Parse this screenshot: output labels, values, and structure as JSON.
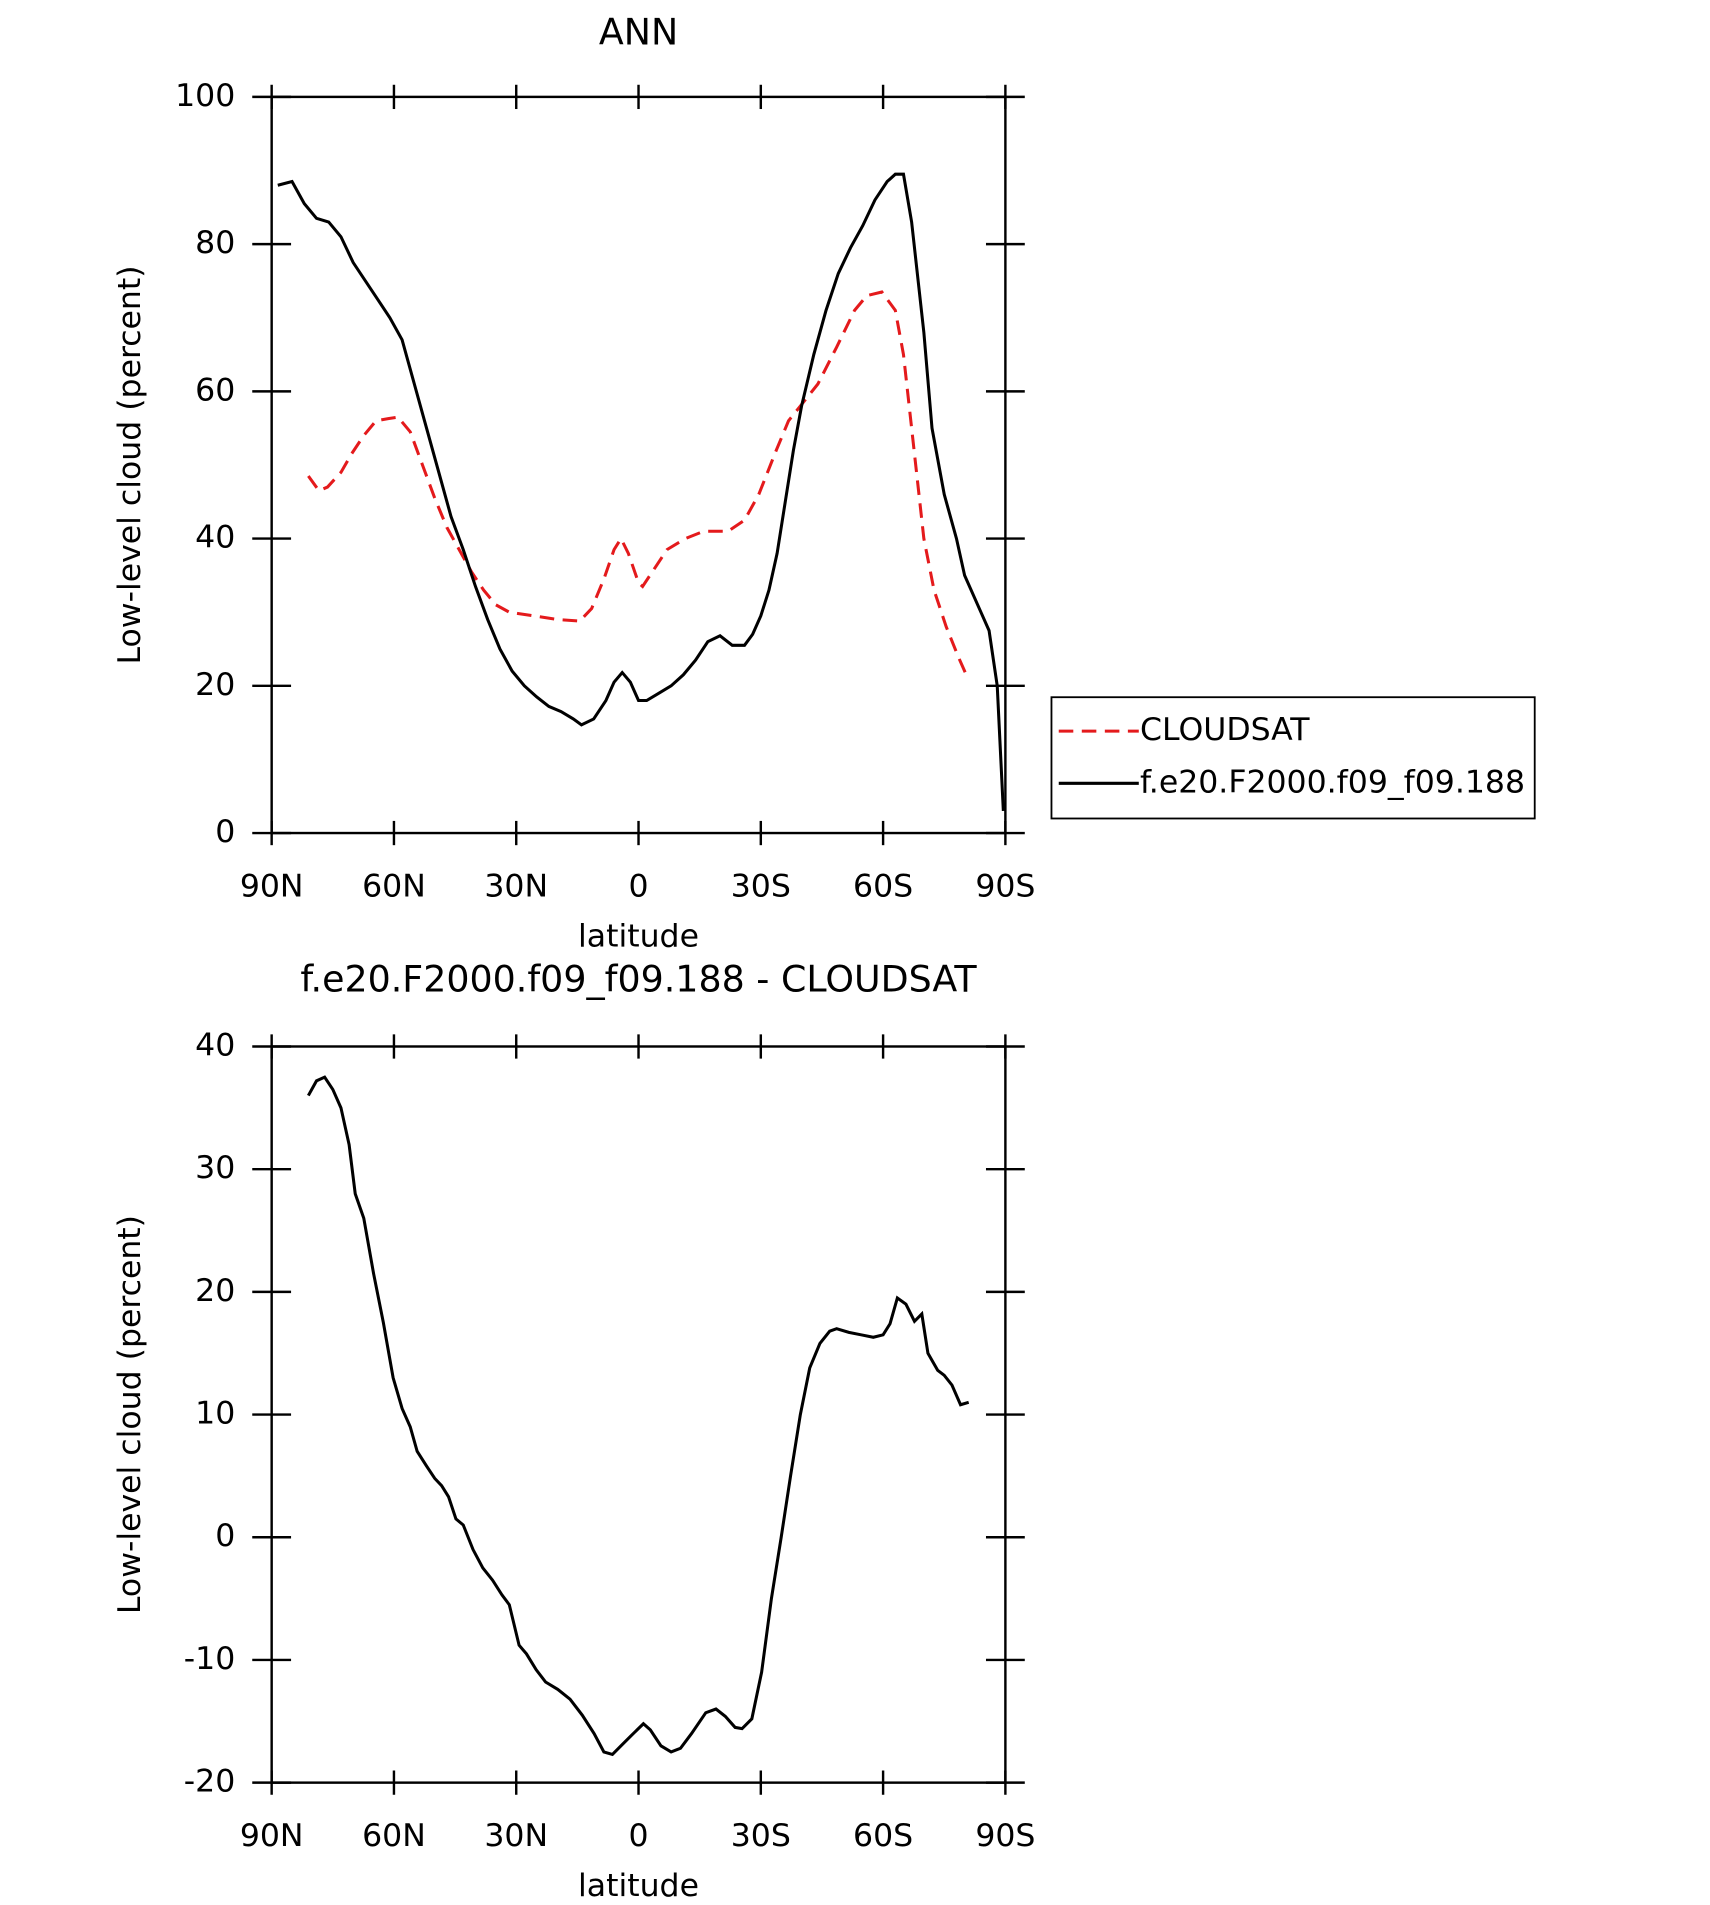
{
  "chart_data": [
    {
      "type": "line",
      "title": "ANN",
      "xlabel": "latitude",
      "ylabel": "Low-level cloud (percent)",
      "xlim": [
        90,
        -90
      ],
      "ylim": [
        0,
        100
      ],
      "xticks": [
        {
          "value": 90,
          "label": "90N"
        },
        {
          "value": 60,
          "label": "60N"
        },
        {
          "value": 30,
          "label": "30N"
        },
        0,
        {
          "value": -30,
          "label": "30S"
        },
        {
          "value": -60,
          "label": "60S"
        },
        {
          "value": -90,
          "label": "90S"
        }
      ],
      "yticks": [
        0,
        20,
        40,
        60,
        80,
        100
      ],
      "legend": "right",
      "series": [
        {
          "name": "CLOUDSAT",
          "color": "#e41a1c",
          "dashed": true,
          "x": [
            81,
            78.4,
            76.3,
            73,
            70.4,
            67.4,
            64.4,
            61.4,
            59,
            56,
            53,
            50,
            47,
            44,
            41,
            38,
            35,
            31.7,
            25.7,
            19.8,
            14.4,
            11.5,
            8.5,
            6,
            4.3,
            2.5,
            0,
            -1,
            -4,
            -7,
            -11.5,
            -16,
            -22,
            -26,
            -29.5,
            -33.8,
            -36.8,
            -39.7,
            -44,
            -48.6,
            -53,
            -56,
            -59.7,
            -63,
            -65,
            -67,
            -70,
            -72.5,
            -75.5,
            -78.4,
            -80.8
          ],
          "values": [
            48.5,
            46.5,
            47,
            49,
            51.5,
            54,
            56,
            56.3,
            56.5,
            54.5,
            50,
            45.5,
            41.5,
            38.5,
            35.5,
            33,
            31,
            30,
            29.5,
            29,
            28.8,
            30.5,
            34.5,
            38.5,
            40,
            38,
            34,
            33.5,
            36,
            38.5,
            40,
            41,
            41,
            42.5,
            46,
            52,
            56,
            58,
            61,
            66,
            71,
            73,
            73.5,
            71,
            65,
            55,
            40,
            33,
            28,
            24,
            21
          ]
        },
        {
          "name": "f.e20.F2000.f09_f09.188",
          "color": "#000000",
          "dashed": false,
          "x": [
            88.5,
            85,
            82,
            79,
            76,
            73,
            70,
            67,
            64,
            61,
            58,
            55,
            52,
            49,
            46,
            43,
            40,
            37,
            34,
            31,
            28,
            25,
            22,
            19,
            16,
            14,
            11,
            8,
            6,
            4,
            2,
            0,
            -2,
            -5,
            -8,
            -11,
            -14,
            -17,
            -20,
            -23,
            -26,
            -28,
            -30,
            -32,
            -34,
            -36,
            -38,
            -40,
            -43,
            -46,
            -49,
            -52,
            -55,
            -58,
            -61,
            -63,
            -65,
            -67,
            -70,
            -72,
            -75,
            -78,
            -80,
            -84,
            -86,
            -88,
            -89.5
          ],
          "values": [
            88,
            88.5,
            85.5,
            83.5,
            83,
            81,
            77.5,
            75,
            72.5,
            70,
            67,
            61,
            55,
            49,
            43,
            38.5,
            33.5,
            29,
            25,
            22,
            20,
            18.5,
            17.2,
            16.5,
            15.5,
            14.7,
            15.5,
            18,
            20.5,
            21.8,
            20.5,
            18,
            18,
            19,
            20,
            21.5,
            23.5,
            26,
            26.8,
            25.5,
            25.5,
            27,
            29.5,
            33,
            38,
            45,
            52,
            58,
            65,
            71,
            76,
            79.5,
            82.5,
            86,
            88.5,
            89.5,
            89.5,
            83,
            68,
            55,
            46,
            40,
            35,
            30,
            27.5,
            20,
            3
          ]
        }
      ]
    },
    {
      "type": "line",
      "title": "f.e20.F2000.f09_f09.188 - CLOUDSAT",
      "xlabel": "latitude",
      "ylabel": "Low-level cloud (percent)",
      "xlim": [
        90,
        -90
      ],
      "ylim": [
        -20,
        40
      ],
      "xticks": [
        {
          "value": 90,
          "label": "90N"
        },
        {
          "value": 60,
          "label": "60N"
        },
        {
          "value": 30,
          "label": "30N"
        },
        0,
        {
          "value": -30,
          "label": "30S"
        },
        {
          "value": -60,
          "label": "60S"
        },
        {
          "value": -90,
          "label": "90S"
        }
      ],
      "yticks": [
        -20,
        -10,
        0,
        10,
        20,
        30,
        40
      ],
      "series": [
        {
          "color": "#000000",
          "dashed": false,
          "x": [
            81,
            79,
            77,
            75,
            73,
            71,
            69.5,
            67.4,
            65,
            62.6,
            60.2,
            58,
            56,
            54.3,
            52,
            50,
            48.3,
            46.6,
            44.8,
            43,
            40.6,
            38.2,
            35.8,
            33.5,
            31.7,
            29.3,
            27.5,
            25.1,
            22.8,
            19.8,
            16.8,
            13.8,
            10.9,
            8.5,
            6.4,
            4.3,
            1.9,
            -1.2,
            -2.9,
            -5.5,
            -8,
            -10.3,
            -13,
            -16.5,
            -19,
            -21.3,
            -23.7,
            -25.4,
            -27.8,
            -30.2,
            -32.6,
            -35,
            -37.3,
            -39.7,
            -42,
            -44.5,
            -46.9,
            -48.6,
            -51.6,
            -54.6,
            -57.6,
            -60,
            -61.7,
            -63.5,
            -65.6,
            -67.7,
            -69.5,
            -71,
            -73.4,
            -75,
            -76.9,
            -79,
            -81
          ],
          "values": [
            36,
            37.2,
            37.5,
            36.5,
            35,
            32,
            28,
            26,
            21.5,
            17.5,
            13,
            10.5,
            9,
            7,
            5.8,
            4.8,
            4.2,
            3.3,
            1.5,
            1,
            -1,
            -2.5,
            -3.5,
            -4.7,
            -5.5,
            -8.8,
            -9.5,
            -10.8,
            -11.8,
            -12.4,
            -13.2,
            -14.5,
            -16,
            -17.5,
            -17.7,
            -17,
            -16.2,
            -15.2,
            -15.7,
            -17,
            -17.5,
            -17.2,
            -16,
            -14.3,
            -14,
            -14.6,
            -15.5,
            -15.6,
            -14.8,
            -11,
            -5,
            0,
            5,
            10,
            13.8,
            15.8,
            16.8,
            17,
            16.7,
            16.5,
            16.3,
            16.5,
            17.4,
            19.5,
            19,
            17.6,
            18.2,
            15,
            13.6,
            13.2,
            12.4,
            10.8,
            11
          ]
        }
      ]
    }
  ]
}
